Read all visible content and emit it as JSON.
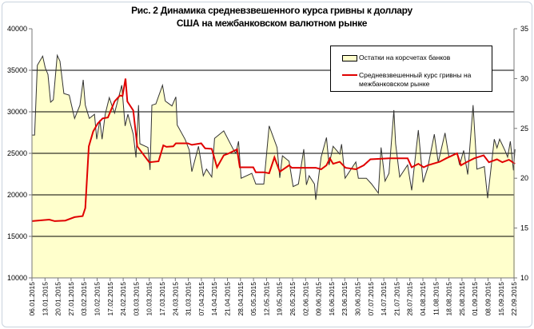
{
  "chart_data": {
    "type": "area+line",
    "title": "Рис. 2 Динамика средневзвешенного курса гривны к доллару США на межбанковском валютном рынке",
    "x_unit": "weeks since 06.01.2015",
    "x_tick_labels": [
      "06.01.2015",
      "13.01.2015",
      "20.01.2015",
      "27.01.2015",
      "03.02.2015",
      "10.02.2015",
      "17.02.2015",
      "24.02.2015",
      "03.03.2015",
      "10.03.2015",
      "17.03.2015",
      "24.03.2015",
      "31.03.2015",
      "07.04.2015",
      "14.04.2015",
      "21.04.2015",
      "28.04.2015",
      "05.05.2015",
      "12.05.2015",
      "19.05.2015",
      "26.05.2015",
      "02.06.2015",
      "09.06.2015",
      "16.06.2015",
      "23.06.2015",
      "30.06.2015",
      "07.07.2015",
      "14.07.2015",
      "21.07.2015",
      "28.07.2015",
      "04.08.2015",
      "11.08.2015",
      "18.08.2015",
      "25.08.2015",
      "01.09.2015",
      "08.09.2015",
      "15.09.2015",
      "22.09.2015"
    ],
    "y_left": {
      "min": 10000,
      "max": 40000,
      "ticks": [
        "10000",
        "15000",
        "20000",
        "25000",
        "30000",
        "35000",
        "40000"
      ]
    },
    "y_right": {
      "min": 10,
      "max": 35,
      "ticks": [
        "10",
        "15",
        "20",
        "25",
        "30",
        "35"
      ]
    },
    "grid": true,
    "legend_position": "top-right",
    "series": [
      {
        "name": "Остатки на корсчетах банков",
        "type": "area",
        "axis": "left",
        "color": "#ffffcc",
        "stroke": "#333333",
        "points": [
          [
            0,
            27200
          ],
          [
            0.2,
            27200
          ],
          [
            0.41,
            35600
          ],
          [
            0.82,
            36700
          ],
          [
            1.02,
            35300
          ],
          [
            1.23,
            34500
          ],
          [
            1.43,
            31150
          ],
          [
            1.64,
            31450
          ],
          [
            1.94,
            36800
          ],
          [
            2.15,
            36100
          ],
          [
            2.45,
            32200
          ],
          [
            2.86,
            32000
          ],
          [
            3.27,
            29200
          ],
          [
            3.68,
            30800
          ],
          [
            3.93,
            33850
          ],
          [
            4.09,
            30800
          ],
          [
            4.4,
            29200
          ],
          [
            4.8,
            29700
          ],
          [
            4.97,
            26700
          ],
          [
            5.21,
            29000
          ],
          [
            5.38,
            26700
          ],
          [
            5.62,
            29700
          ],
          [
            5.93,
            31700
          ],
          [
            6.34,
            29850
          ],
          [
            6.89,
            33200
          ],
          [
            7.15,
            28300
          ],
          [
            7.36,
            29700
          ],
          [
            7.77,
            27300
          ],
          [
            7.98,
            24500
          ],
          [
            8.18,
            30800
          ],
          [
            8.28,
            26150
          ],
          [
            8.9,
            25700
          ],
          [
            9.06,
            23000
          ],
          [
            9.2,
            30800
          ],
          [
            9.51,
            30950
          ],
          [
            10.02,
            33200
          ],
          [
            10.23,
            31300
          ],
          [
            10.74,
            30700
          ],
          [
            11.04,
            31800
          ],
          [
            11.15,
            28400
          ],
          [
            11.76,
            26650
          ],
          [
            12.07,
            25400
          ],
          [
            12.27,
            22800
          ],
          [
            12.78,
            25850
          ],
          [
            13.15,
            22300
          ],
          [
            13.39,
            23100
          ],
          [
            13.8,
            22150
          ],
          [
            14.01,
            26800
          ],
          [
            14.72,
            27700
          ],
          [
            15.44,
            25500
          ],
          [
            15.64,
            25000
          ],
          [
            15.85,
            26450
          ],
          [
            16.05,
            22000
          ],
          [
            16.87,
            22600
          ],
          [
            17.18,
            21300
          ],
          [
            17.79,
            21300
          ],
          [
            18.2,
            28300
          ],
          [
            18.81,
            25700
          ],
          [
            19.02,
            22050
          ],
          [
            19.22,
            24700
          ],
          [
            19.73,
            24050
          ],
          [
            20.04,
            21000
          ],
          [
            20.45,
            21300
          ],
          [
            20.86,
            25500
          ],
          [
            21.06,
            21200
          ],
          [
            21.27,
            22300
          ],
          [
            21.68,
            21300
          ],
          [
            21.78,
            19400
          ],
          [
            22.19,
            24550
          ],
          [
            22.6,
            26900
          ],
          [
            22.8,
            23600
          ],
          [
            23.11,
            25850
          ],
          [
            23.62,
            24900
          ],
          [
            23.76,
            26100
          ],
          [
            24.03,
            22000
          ],
          [
            24.85,
            23950
          ],
          [
            25.05,
            22000
          ],
          [
            25.66,
            22000
          ],
          [
            26.07,
            21300
          ],
          [
            26.58,
            20200
          ],
          [
            26.79,
            25700
          ],
          [
            27.1,
            21650
          ],
          [
            27.4,
            22600
          ],
          [
            27.77,
            30200
          ],
          [
            27.91,
            26150
          ],
          [
            28.22,
            22150
          ],
          [
            28.83,
            23600
          ],
          [
            29.14,
            20550
          ],
          [
            29.65,
            27800
          ],
          [
            30.02,
            21500
          ],
          [
            30.37,
            23250
          ],
          [
            30.88,
            27300
          ],
          [
            31.18,
            23900
          ],
          [
            31.7,
            27450
          ],
          [
            32.0,
            24550
          ],
          [
            32.62,
            25000
          ],
          [
            32.82,
            23600
          ],
          [
            33.13,
            25350
          ],
          [
            33.44,
            22450
          ],
          [
            33.85,
            30800
          ],
          [
            34.15,
            23100
          ],
          [
            34.72,
            23400
          ],
          [
            34.97,
            19600
          ],
          [
            35.48,
            26700
          ],
          [
            35.69,
            25650
          ],
          [
            35.89,
            26700
          ],
          [
            36.3,
            25350
          ],
          [
            36.5,
            24550
          ],
          [
            36.71,
            26450
          ],
          [
            36.95,
            22950
          ],
          [
            37.07,
            25500
          ]
        ]
      },
      {
        "name": "Средневзвешенный  курс гривны на межбанковском рынке",
        "type": "line",
        "axis": "right",
        "color": "#e00000",
        "points": [
          [
            0,
            15.7
          ],
          [
            1.33,
            15.85
          ],
          [
            1.74,
            15.7
          ],
          [
            2.56,
            15.75
          ],
          [
            3.27,
            16.1
          ],
          [
            3.89,
            16.2
          ],
          [
            4.09,
            17.0
          ],
          [
            4.36,
            23.2
          ],
          [
            4.7,
            24.7
          ],
          [
            5.05,
            25.5
          ],
          [
            5.42,
            26.0
          ],
          [
            5.83,
            26.1
          ],
          [
            6.34,
            27.7
          ],
          [
            6.75,
            28.3
          ],
          [
            6.95,
            28.25
          ],
          [
            7.18,
            30.0
          ],
          [
            7.32,
            27.7
          ],
          [
            7.77,
            26.8
          ],
          [
            8.08,
            23.2
          ],
          [
            9.0,
            21.6
          ],
          [
            9.71,
            21.7
          ],
          [
            10.08,
            23.3
          ],
          [
            10.32,
            23.15
          ],
          [
            10.84,
            23.2
          ],
          [
            11.04,
            23.5
          ],
          [
            11.96,
            23.5
          ],
          [
            12.27,
            23.35
          ],
          [
            12.99,
            23.5
          ],
          [
            13.29,
            23.0
          ],
          [
            13.8,
            22.95
          ],
          [
            14.2,
            21.1
          ],
          [
            14.72,
            22.3
          ],
          [
            15.03,
            22.45
          ],
          [
            15.74,
            22.9
          ],
          [
            15.95,
            21.1
          ],
          [
            16.98,
            21.1
          ],
          [
            17.18,
            20.6
          ],
          [
            17.79,
            20.6
          ],
          [
            18.2,
            20.5
          ],
          [
            18.61,
            22.1
          ],
          [
            19.02,
            20.65
          ],
          [
            19.73,
            21.3
          ],
          [
            19.94,
            21.05
          ],
          [
            21.78,
            21.05
          ],
          [
            22.19,
            20.9
          ],
          [
            22.6,
            21.3
          ],
          [
            22.86,
            22.0
          ],
          [
            23.11,
            21.45
          ],
          [
            23.62,
            21.65
          ],
          [
            24.06,
            21.05
          ],
          [
            24.85,
            20.9
          ],
          [
            25.46,
            21.3
          ],
          [
            25.97,
            21.9
          ],
          [
            27.4,
            22.0
          ],
          [
            28.83,
            22.0
          ],
          [
            29.14,
            21.1
          ],
          [
            29.65,
            21.45
          ],
          [
            30.06,
            21.1
          ],
          [
            30.37,
            21.3
          ],
          [
            31.29,
            21.65
          ],
          [
            31.8,
            22.0
          ],
          [
            32.62,
            22.5
          ],
          [
            32.92,
            21.3
          ],
          [
            33.33,
            21.6
          ],
          [
            33.95,
            22.0
          ],
          [
            34.66,
            22.3
          ],
          [
            35.07,
            21.6
          ],
          [
            35.69,
            21.9
          ],
          [
            36.1,
            21.6
          ],
          [
            36.61,
            21.85
          ],
          [
            37.07,
            21.45
          ]
        ]
      }
    ]
  }
}
